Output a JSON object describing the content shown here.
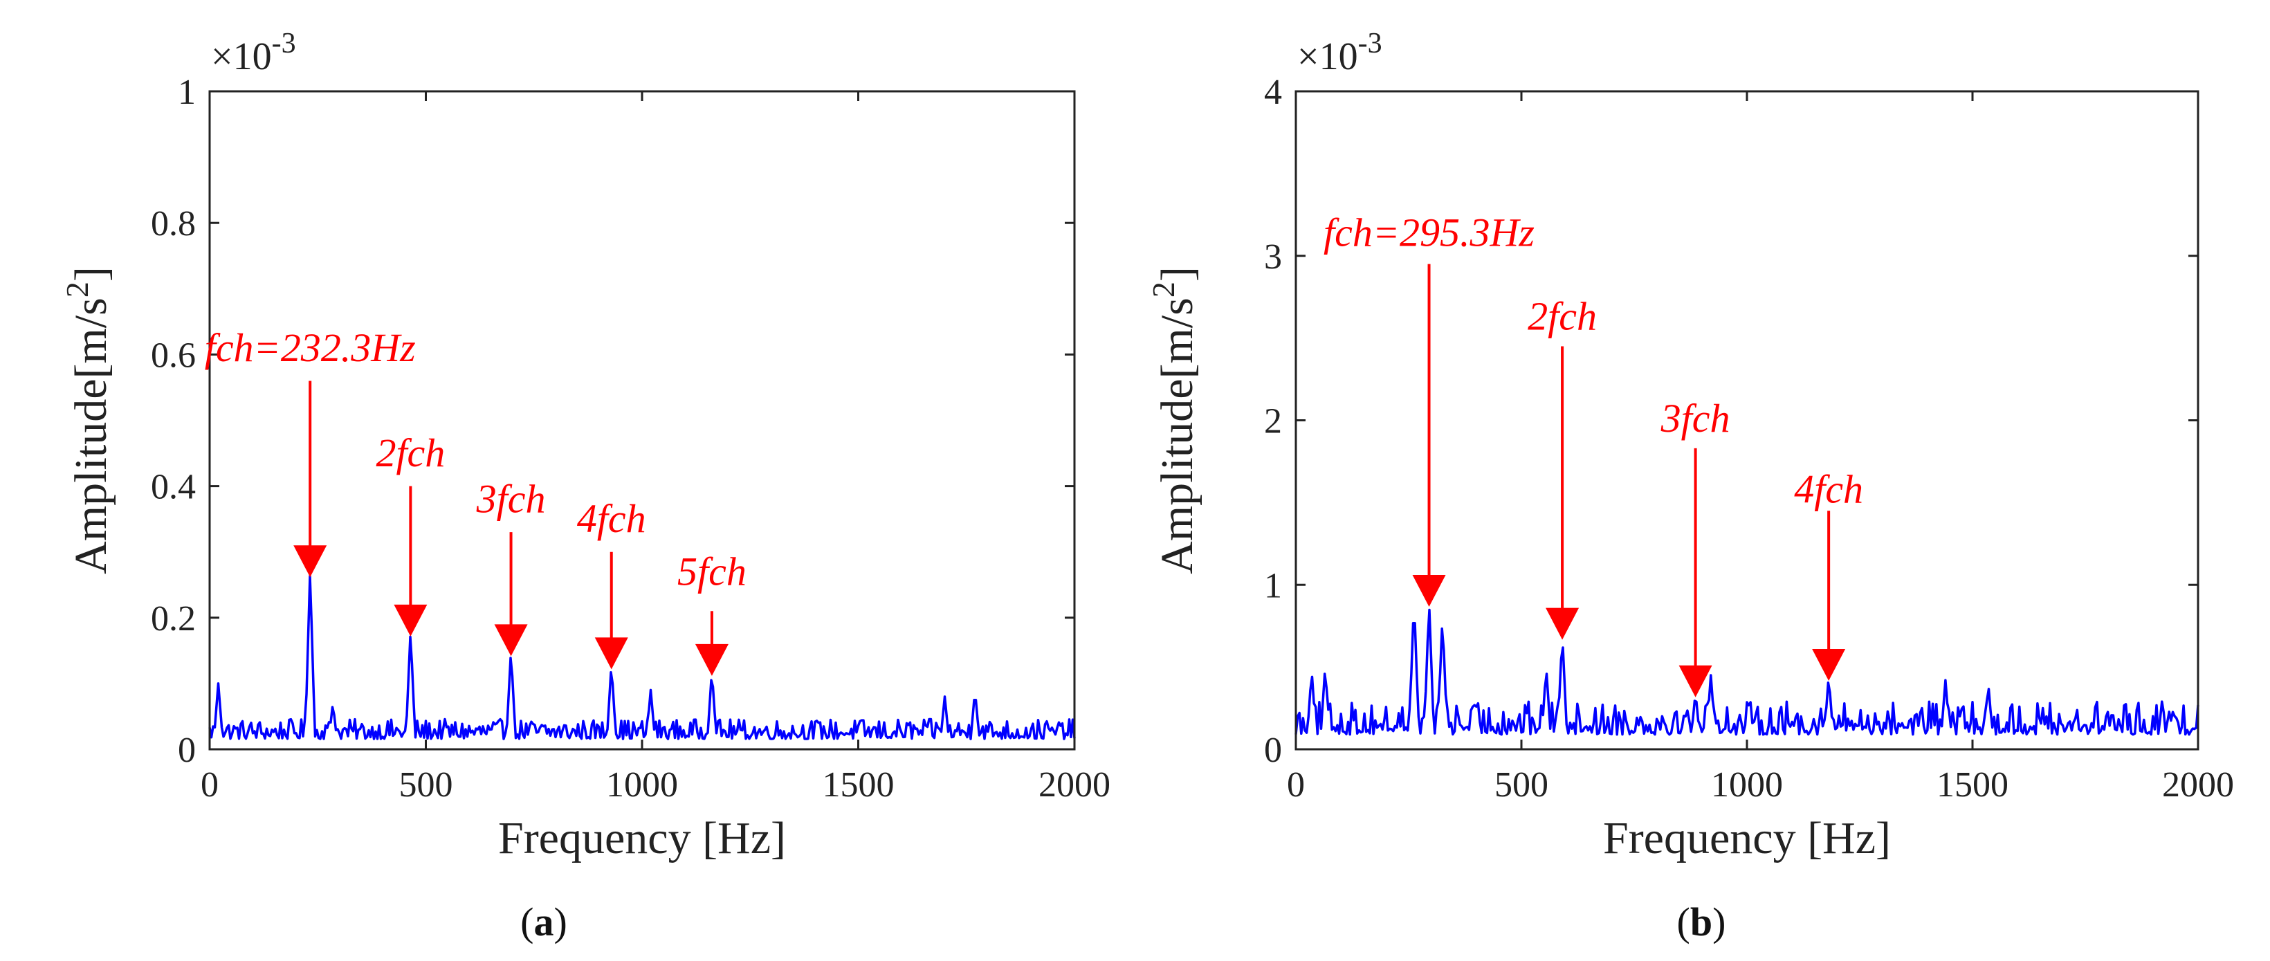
{
  "chart_data": [
    {
      "type": "line",
      "panel_label": "(a)",
      "panel_letter": "a",
      "xlabel": "Frequency [Hz]",
      "ylabel_main": "Amplitude[m/s",
      "ylabel_sup": "2",
      "ylabel_close": "]",
      "multiplier": "×10",
      "multiplier_exp": "-3",
      "xlim": [
        0,
        2000
      ],
      "ylim": [
        0,
        1
      ],
      "xticks": [
        0,
        500,
        1000,
        1500,
        2000
      ],
      "yticks": [
        0,
        0.2,
        0.4,
        0.6,
        0.8,
        1
      ],
      "ytick_labels": [
        "0",
        "0.2",
        "0.4",
        "0.6",
        "0.8",
        "1"
      ],
      "grid": false,
      "series_color": "#0000ff",
      "annotation_color": "#ff0000",
      "noise_level": 0.035,
      "noise_amp": 0.03,
      "peaks": [
        {
          "x": 232.3,
          "y": 0.27,
          "label": "fch=232.3Hz",
          "label_y": 0.59,
          "arrow_top": 0.56
        },
        {
          "x": 464.6,
          "y": 0.18,
          "label": "2fch",
          "label_y": 0.43,
          "arrow_top": 0.4
        },
        {
          "x": 696.9,
          "y": 0.15,
          "label": "3fch",
          "label_y": 0.36,
          "arrow_top": 0.33
        },
        {
          "x": 929.2,
          "y": 0.13,
          "label": "4fch",
          "label_y": 0.33,
          "arrow_top": 0.3
        },
        {
          "x": 1161.5,
          "y": 0.12,
          "label": "5fch",
          "label_y": 0.25,
          "arrow_top": 0.21
        }
      ],
      "extra_peaks": [
        {
          "x": 20,
          "y": 0.1
        },
        {
          "x": 285,
          "y": 0.07
        },
        {
          "x": 1020,
          "y": 0.09
        },
        {
          "x": 1770,
          "y": 0.09
        },
        {
          "x": 1700,
          "y": 0.08
        }
      ]
    },
    {
      "type": "line",
      "panel_label": "(b)",
      "panel_letter": "b",
      "xlabel": "Frequency [Hz]",
      "ylabel_main": "Amplitude[m/s",
      "ylabel_sup": "2",
      "ylabel_close": "]",
      "multiplier": "×10",
      "multiplier_exp": "-3",
      "xlim": [
        0,
        2000
      ],
      "ylim": [
        0,
        4
      ],
      "xticks": [
        0,
        500,
        1000,
        1500,
        2000
      ],
      "yticks": [
        0,
        1,
        2,
        3,
        4
      ],
      "ytick_labels": [
        "0",
        "1",
        "2",
        "3",
        "4"
      ],
      "grid": false,
      "series_color": "#0000ff",
      "annotation_color": "#ff0000",
      "noise_level": 0.2,
      "noise_amp": 0.2,
      "peaks": [
        {
          "x": 295.3,
          "y": 0.9,
          "label": "fch=295.3Hz",
          "label_y": 3.06,
          "arrow_top": 2.95
        },
        {
          "x": 590.6,
          "y": 0.7,
          "label": "2fch",
          "label_y": 2.55,
          "arrow_top": 2.45
        },
        {
          "x": 885.9,
          "y": 0.35,
          "label": "3fch",
          "label_y": 1.93,
          "arrow_top": 1.83
        },
        {
          "x": 1181.2,
          "y": 0.45,
          "label": "4fch",
          "label_y": 1.5,
          "arrow_top": 1.45
        }
      ],
      "extra_peaks": [
        {
          "x": 262,
          "y": 0.92
        },
        {
          "x": 325,
          "y": 0.8
        },
        {
          "x": 555,
          "y": 0.5
        },
        {
          "x": 920,
          "y": 0.45
        },
        {
          "x": 1440,
          "y": 0.42
        },
        {
          "x": 1535,
          "y": 0.4
        },
        {
          "x": 35,
          "y": 0.48
        },
        {
          "x": 65,
          "y": 0.5
        }
      ]
    }
  ]
}
